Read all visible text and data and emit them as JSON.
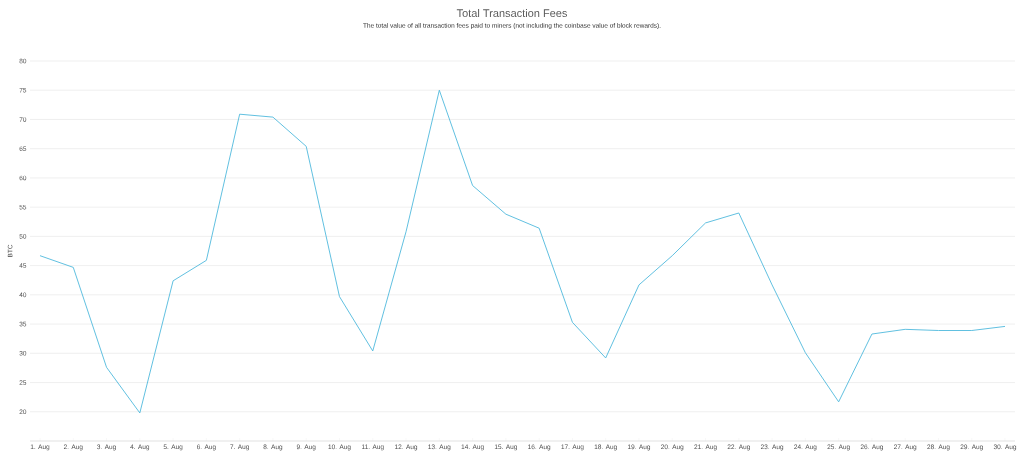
{
  "chart_data": {
    "type": "line",
    "title": "Total Transaction Fees",
    "subtitle": "The total value of all transaction fees paid to miners (not including the coinbase value of block rewards).",
    "ylabel": "BTC",
    "categories": [
      "1. Aug",
      "2. Aug",
      "3. Aug",
      "4. Aug",
      "5. Aug",
      "6. Aug",
      "7. Aug",
      "8. Aug",
      "9. Aug",
      "10. Aug",
      "11. Aug",
      "12. Aug",
      "13. Aug",
      "14. Aug",
      "15. Aug",
      "16. Aug",
      "17. Aug",
      "18. Aug",
      "19. Aug",
      "20. Aug",
      "21. Aug",
      "22. Aug",
      "23. Aug",
      "24. Aug",
      "25. Aug",
      "26. Aug",
      "27. Aug",
      "28. Aug",
      "29. Aug",
      "30. Aug"
    ],
    "series": [
      {
        "color": "#4fb9dd",
        "values": [
          46.7,
          44.7,
          27.6,
          19.8,
          42.4,
          45.9,
          70.9,
          70.4,
          65.4,
          39.7,
          30.4,
          50.8,
          75.0,
          58.7,
          53.8,
          51.4,
          35.3,
          29.2,
          41.7,
          46.7,
          52.3,
          54.0,
          41.7,
          30.1,
          21.7,
          33.3,
          34.1,
          33.9,
          33.9,
          34.6
        ]
      }
    ],
    "ylim": [
      15,
      80
    ],
    "yticks": [
      20,
      25,
      30,
      35,
      40,
      45,
      50,
      55,
      60,
      65,
      70,
      75,
      80
    ],
    "grid": "y",
    "marker": "none",
    "line_style": "solid"
  }
}
